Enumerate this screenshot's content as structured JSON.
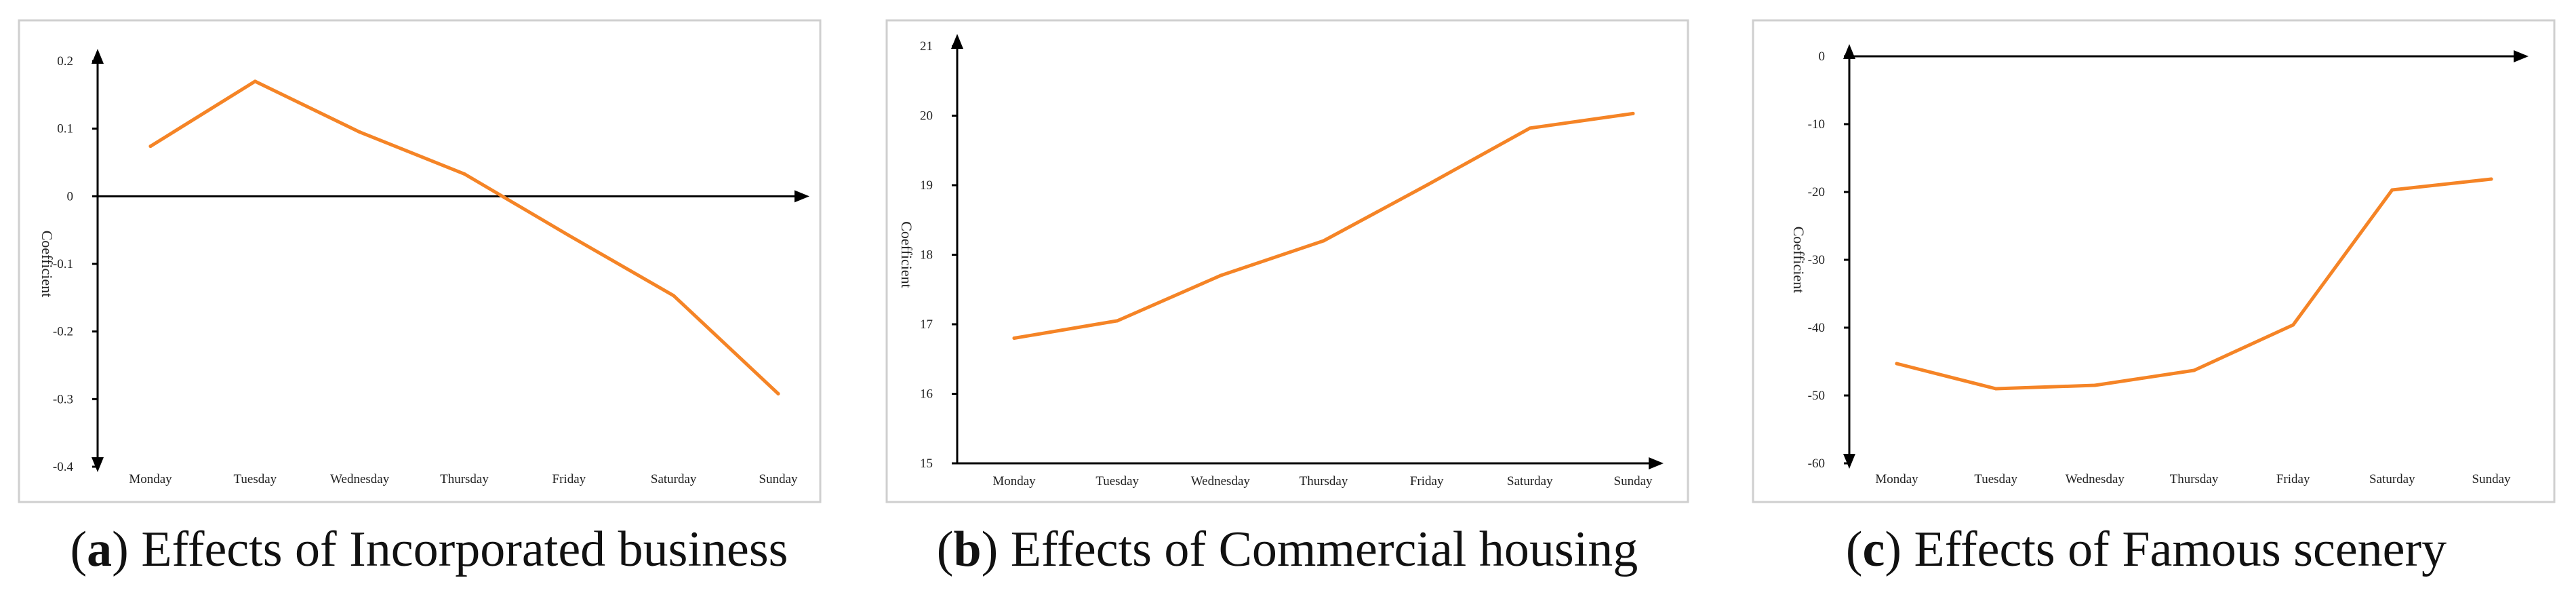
{
  "chart_data": [
    {
      "type": "line",
      "panel": "a",
      "caption_letter": "a",
      "caption_text": ") Effects of Incorporated business",
      "ylabel": "Coefficient",
      "categories": [
        "Monday",
        "Tuesday",
        "Wednesday",
        "Thursday",
        "Friday",
        "Saturday",
        "Sunday"
      ],
      "values": [
        0.074,
        0.17,
        0.095,
        0.033,
        -0.058,
        -0.147,
        -0.292
      ],
      "ylim": [
        -0.4,
        0.2
      ],
      "yticks": [
        0.2,
        0.1,
        0,
        -0.1,
        -0.2,
        -0.3,
        -0.4
      ],
      "ytick_labels": [
        "0.2",
        "0.1",
        "0",
        "-0.1",
        "-0.2",
        "-0.3",
        "-0.4"
      ],
      "line_color": "#f58426"
    },
    {
      "type": "line",
      "panel": "b",
      "caption_letter": "b",
      "caption_text": ") Effects of Commercial housing",
      "ylabel": "Coefficient",
      "categories": [
        "Monday",
        "Tuesday",
        "Wednesday",
        "Thursday",
        "Friday",
        "Saturday",
        "Sunday"
      ],
      "values": [
        16.8,
        17.05,
        17.7,
        18.2,
        19.0,
        19.82,
        20.03
      ],
      "ylim": [
        15,
        21
      ],
      "yticks": [
        21,
        20,
        19,
        18,
        17,
        16,
        15
      ],
      "ytick_labels": [
        "21",
        "20",
        "19",
        "18",
        "17",
        "16",
        "15"
      ],
      "line_color": "#f58426"
    },
    {
      "type": "line",
      "panel": "c",
      "caption_letter": "c",
      "caption_text": ") Effects of Famous scenery",
      "ylabel": "Coefficient",
      "categories": [
        "Monday",
        "Tuesday",
        "Wednesday",
        "Thursday",
        "Friday",
        "Saturday",
        "Sunday"
      ],
      "values": [
        -45.3,
        -49.0,
        -48.5,
        -46.3,
        -39.6,
        -19.7,
        -18.1
      ],
      "ylim": [
        -60,
        0
      ],
      "yticks": [
        0,
        -10,
        -20,
        -30,
        -40,
        -50,
        -60
      ],
      "ytick_labels": [
        "0",
        "-10",
        "-20",
        "-30",
        "-40",
        "-50",
        "-60"
      ],
      "line_color": "#f58426"
    }
  ]
}
